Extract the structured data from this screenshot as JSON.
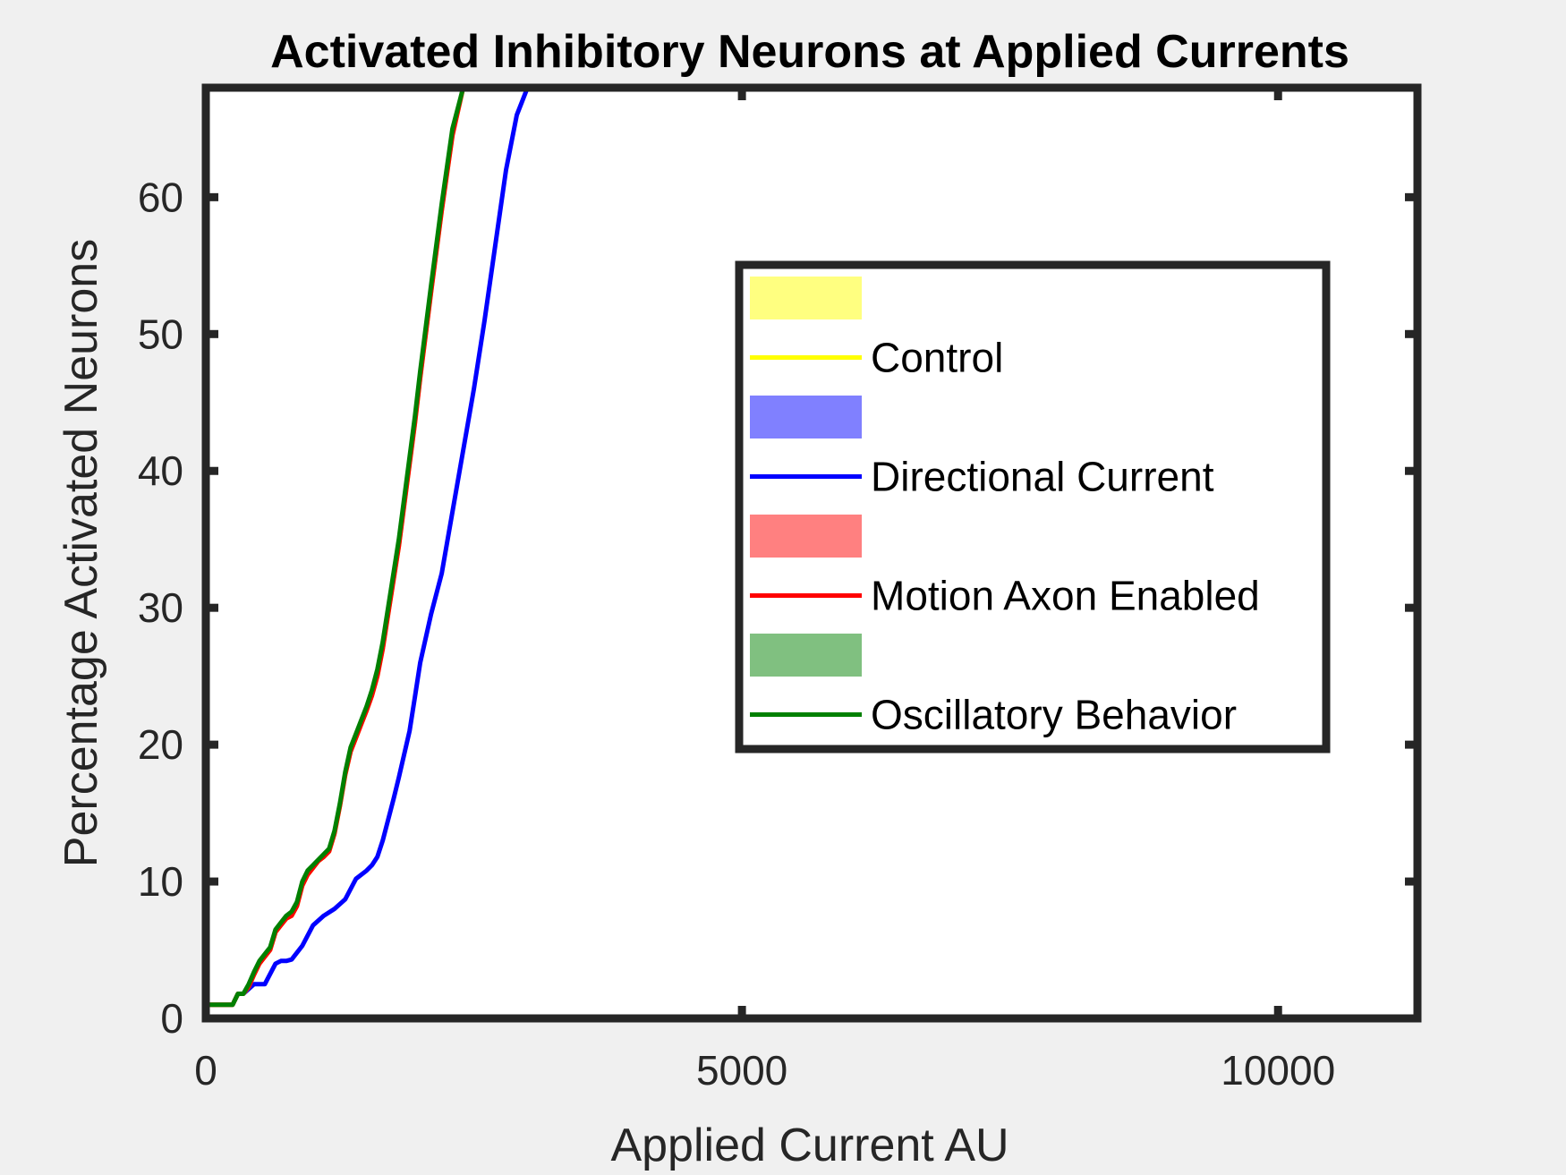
{
  "chart_data": {
    "type": "line",
    "title": "Activated Inhibitory Neurons at Applied Currents",
    "xlabel": "Applied Current AU",
    "ylabel": "Percentage Activated Neurons",
    "xlim": [
      0,
      11300
    ],
    "ylim": [
      0,
      68
    ],
    "xticks": [
      0,
      5000,
      10000
    ],
    "yticks": [
      0,
      10,
      20,
      30,
      40,
      50,
      60
    ],
    "xtick_labels": [
      "0",
      "5000",
      "10000"
    ],
    "ytick_labels": [
      "0",
      "10",
      "20",
      "30",
      "40",
      "50",
      "60"
    ],
    "grid": false,
    "legend_position": "right",
    "legend": [
      {
        "kind": "patch",
        "label": "",
        "color": "#ffff80"
      },
      {
        "kind": "line",
        "label": "Control",
        "color": "#ffff00"
      },
      {
        "kind": "patch",
        "label": "",
        "color": "#8080ff"
      },
      {
        "kind": "line",
        "label": "Directional Current",
        "color": "#0000ff"
      },
      {
        "kind": "patch",
        "label": "",
        "color": "#ff8080"
      },
      {
        "kind": "line",
        "label": "Motion Axon Enabled",
        "color": "#ff0000"
      },
      {
        "kind": "patch",
        "label": "",
        "color": "#80c080"
      },
      {
        "kind": "line",
        "label": "Oscillatory Behavior",
        "color": "#008000"
      }
    ],
    "series": [
      {
        "name": "Directional Current",
        "color": "#0000ff",
        "x": [
          0,
          250,
          300,
          350,
          450,
          550,
          650,
          700,
          750,
          800,
          900,
          1000,
          1100,
          1200,
          1300,
          1400,
          1500,
          1550,
          1600,
          1650,
          1700,
          1750,
          1800,
          1850,
          1900,
          1950,
          2000,
          2100,
          2200,
          2300,
          2400,
          2500,
          2600,
          2700,
          2800,
          2900,
          3000,
          3100,
          3200,
          3300
        ],
        "values": [
          1,
          1,
          1.8,
          1.8,
          2.5,
          2.5,
          4,
          4.2,
          4.2,
          4.3,
          5.3,
          6.8,
          7.5,
          8,
          8.7,
          10.2,
          10.8,
          11.2,
          11.8,
          13,
          14.5,
          16,
          17.6,
          19.3,
          21,
          23.5,
          26,
          29.5,
          32.5,
          37,
          41.5,
          46,
          51,
          56.5,
          62,
          66,
          68,
          68,
          68,
          68
        ]
      },
      {
        "name": "Control",
        "color": "#ffff00",
        "x": [
          0,
          250,
          300,
          350,
          400,
          450,
          500,
          600,
          650,
          700,
          750,
          800,
          850,
          900,
          950,
          1000,
          1050,
          1100,
          1150,
          1200,
          1250,
          1300,
          1350,
          1400,
          1450,
          1500,
          1550,
          1600,
          1650,
          1700,
          1750,
          1800,
          1850,
          1900,
          1950,
          2000,
          2100,
          2200,
          2300,
          2400,
          2500,
          2600,
          2700
        ],
        "values": [
          1,
          1,
          1.8,
          1.8,
          2.3,
          3.2,
          4,
          5,
          6.3,
          6.8,
          7.3,
          7.5,
          8.2,
          9.7,
          10.5,
          11,
          11.5,
          11.8,
          12.2,
          13.5,
          15.5,
          17.8,
          19.5,
          20.5,
          21.5,
          22.5,
          23.6,
          25,
          27,
          29.5,
          32,
          34.5,
          37.5,
          40.5,
          43.5,
          46.8,
          53,
          59,
          64.5,
          68,
          68,
          68,
          68
        ]
      },
      {
        "name": "Motion Axon Enabled",
        "color": "#ff0000",
        "x": [
          0,
          250,
          300,
          350,
          400,
          450,
          500,
          600,
          650,
          700,
          750,
          800,
          850,
          900,
          950,
          1000,
          1050,
          1100,
          1150,
          1200,
          1250,
          1300,
          1350,
          1400,
          1450,
          1500,
          1550,
          1600,
          1650,
          1700,
          1750,
          1800,
          1850,
          1900,
          1950,
          2000,
          2100,
          2200,
          2300,
          2400,
          2500,
          2600,
          2700
        ],
        "values": [
          1,
          1,
          1.8,
          1.8,
          2.3,
          3.2,
          4,
          5,
          6.3,
          6.8,
          7.3,
          7.5,
          8.2,
          9.7,
          10.5,
          11,
          11.5,
          11.8,
          12.2,
          13.5,
          15.5,
          17.8,
          19.5,
          20.5,
          21.5,
          22.5,
          23.6,
          25,
          27,
          29.5,
          32,
          34.5,
          37.5,
          40.5,
          43.5,
          46.8,
          53,
          59,
          64.5,
          68,
          68,
          68,
          68
        ]
      },
      {
        "name": "Oscillatory Behavior",
        "color": "#008000",
        "x": [
          0,
          250,
          300,
          350,
          400,
          450,
          500,
          600,
          650,
          700,
          750,
          800,
          850,
          900,
          950,
          1000,
          1050,
          1100,
          1150,
          1200,
          1250,
          1300,
          1350,
          1400,
          1450,
          1500,
          1550,
          1600,
          1650,
          1700,
          1750,
          1800,
          1850,
          1900,
          1950,
          2000,
          2100,
          2200,
          2300,
          2400,
          2500,
          2600,
          2700
        ],
        "values": [
          1,
          1,
          1.8,
          1.8,
          2.5,
          3.4,
          4.2,
          5.2,
          6.5,
          7,
          7.5,
          7.8,
          8.5,
          10,
          10.8,
          11.2,
          11.6,
          12,
          12.4,
          13.7,
          15.7,
          18,
          19.8,
          20.8,
          21.8,
          22.8,
          24,
          25.5,
          27.5,
          30,
          32.5,
          35,
          38,
          41,
          44,
          47.3,
          53.5,
          59.5,
          65,
          68,
          68,
          68,
          68
        ]
      }
    ]
  }
}
